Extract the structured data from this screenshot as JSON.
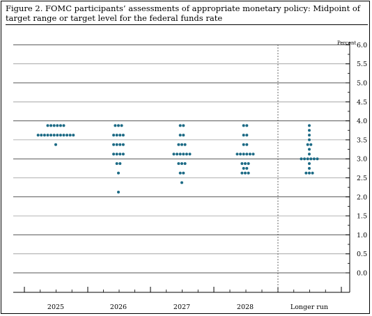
{
  "title": "Figure 2. FOMC participants’ assessments of appropriate monetary policy: Midpoint of target range or target level for the federal funds rate",
  "chart_data": {
    "type": "scatter",
    "subtype": "dot-plot",
    "unit_label": "Percent",
    "categories": [
      "2025",
      "2026",
      "2027",
      "2028",
      "Longer run"
    ],
    "ylim": [
      -0.25,
      6.25
    ],
    "yticks": [
      0.0,
      0.5,
      1.0,
      1.5,
      2.0,
      2.5,
      3.0,
      3.5,
      4.0,
      4.5,
      5.0,
      5.5,
      6.0
    ],
    "ytick_labels": [
      "0.0",
      "0.5",
      "1.0",
      "1.5",
      "2.0",
      "2.5",
      "3.0",
      "3.5",
      "4.0",
      "4.5",
      "5.0",
      "5.5",
      "6.0"
    ],
    "grid": true,
    "dot_color": "#1c6a85",
    "series": [
      {
        "category": "2025",
        "counts": [
          {
            "rate": 3.875,
            "n": 6
          },
          {
            "rate": 3.625,
            "n": 12
          },
          {
            "rate": 3.375,
            "n": 1
          }
        ]
      },
      {
        "category": "2026",
        "counts": [
          {
            "rate": 3.875,
            "n": 3
          },
          {
            "rate": 3.625,
            "n": 4
          },
          {
            "rate": 3.375,
            "n": 4
          },
          {
            "rate": 3.125,
            "n": 4
          },
          {
            "rate": 2.875,
            "n": 2
          },
          {
            "rate": 2.625,
            "n": 1
          },
          {
            "rate": 2.125,
            "n": 1
          }
        ]
      },
      {
        "category": "2027",
        "counts": [
          {
            "rate": 3.875,
            "n": 2
          },
          {
            "rate": 3.625,
            "n": 2
          },
          {
            "rate": 3.375,
            "n": 3
          },
          {
            "rate": 3.125,
            "n": 6
          },
          {
            "rate": 2.875,
            "n": 3
          },
          {
            "rate": 2.625,
            "n": 2
          },
          {
            "rate": 2.375,
            "n": 1
          }
        ]
      },
      {
        "category": "2028",
        "counts": [
          {
            "rate": 3.875,
            "n": 2
          },
          {
            "rate": 3.625,
            "n": 2
          },
          {
            "rate": 3.375,
            "n": 2
          },
          {
            "rate": 3.125,
            "n": 6
          },
          {
            "rate": 2.875,
            "n": 3
          },
          {
            "rate": 2.75,
            "n": 2
          },
          {
            "rate": 2.625,
            "n": 3
          }
        ]
      },
      {
        "category": "Longer run",
        "counts": [
          {
            "rate": 3.875,
            "n": 1
          },
          {
            "rate": 3.75,
            "n": 1
          },
          {
            "rate": 3.625,
            "n": 1
          },
          {
            "rate": 3.5,
            "n": 1
          },
          {
            "rate": 3.375,
            "n": 2
          },
          {
            "rate": 3.25,
            "n": 1
          },
          {
            "rate": 3.125,
            "n": 1
          },
          {
            "rate": 3.0,
            "n": 6
          },
          {
            "rate": 2.875,
            "n": 1
          },
          {
            "rate": 2.75,
            "n": 1
          },
          {
            "rate": 2.625,
            "n": 3
          }
        ]
      }
    ]
  }
}
